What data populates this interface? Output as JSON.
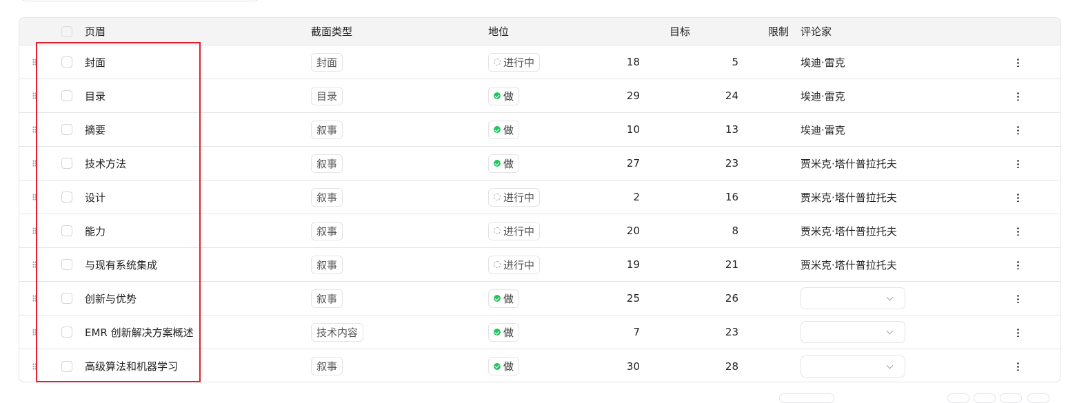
{
  "table": {
    "headers": {
      "title": "页眉",
      "section_type": "截面类型",
      "status": "地位",
      "target": "目标",
      "limit": "限制",
      "reviewer": "评论家"
    },
    "rows": [
      {
        "title": "封面",
        "type": "封面",
        "status": "进行中",
        "status_kind": "progress",
        "target": "18",
        "limit": "5",
        "reviewer": "埃迪·雷克"
      },
      {
        "title": "目录",
        "type": "目录",
        "status": "做",
        "status_kind": "done",
        "target": "29",
        "limit": "24",
        "reviewer": "埃迪·雷克"
      },
      {
        "title": "摘要",
        "type": "叙事",
        "status": "做",
        "status_kind": "done",
        "target": "10",
        "limit": "13",
        "reviewer": "埃迪·雷克"
      },
      {
        "title": "技术方法",
        "type": "叙事",
        "status": "做",
        "status_kind": "done",
        "target": "27",
        "limit": "23",
        "reviewer": "贾米克·塔什普拉托夫"
      },
      {
        "title": "设计",
        "type": "叙事",
        "status": "进行中",
        "status_kind": "progress",
        "target": "2",
        "limit": "16",
        "reviewer": "贾米克·塔什普拉托夫"
      },
      {
        "title": "能力",
        "type": "叙事",
        "status": "进行中",
        "status_kind": "progress",
        "target": "20",
        "limit": "8",
        "reviewer": "贾米克·塔什普拉托夫"
      },
      {
        "title": "与现有系统集成",
        "type": "叙事",
        "status": "进行中",
        "status_kind": "progress",
        "target": "19",
        "limit": "21",
        "reviewer": "贾米克·塔什普拉托夫"
      },
      {
        "title": "创新与优势",
        "type": "叙事",
        "status": "做",
        "status_kind": "done",
        "target": "25",
        "limit": "26",
        "reviewer": ""
      },
      {
        "title": "EMR 创新解决方案概述",
        "type": "技术内容",
        "status": "做",
        "status_kind": "done",
        "target": "7",
        "limit": "23",
        "reviewer": ""
      },
      {
        "title": "高级算法和机器学习",
        "type": "叙事",
        "status": "做",
        "status_kind": "done",
        "target": "30",
        "limit": "28",
        "reviewer": ""
      }
    ]
  },
  "colors": {
    "done": "#22c55e",
    "highlight": "#e11d2e",
    "header_bg": "#f4f4f5"
  },
  "icons": {
    "done": "check-circle-icon",
    "progress": "loader-icon",
    "drag": "drag-handle-icon",
    "menu": "more-vertical-icon",
    "select": "chevron-down-icon"
  }
}
